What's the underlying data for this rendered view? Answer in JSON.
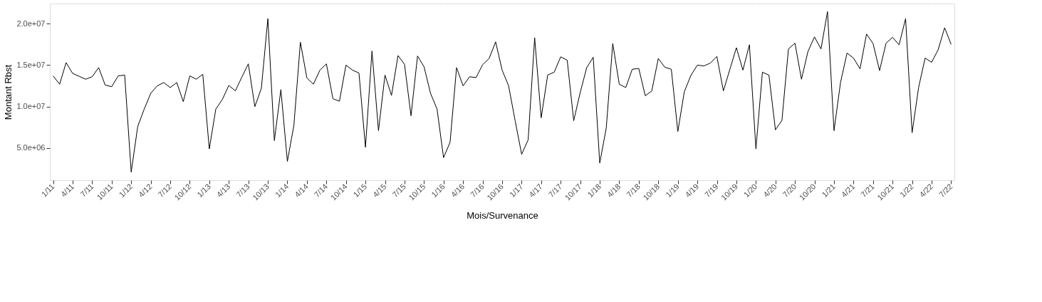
{
  "chart_data": {
    "type": "line",
    "xlabel": "Mois/Survenance",
    "ylabel": "Montant Rbst",
    "categories": [
      "1/11",
      null,
      null,
      "4/11",
      null,
      null,
      "7/11",
      null,
      null,
      "10/11",
      null,
      null,
      "1/12",
      null,
      null,
      "4/12",
      null,
      null,
      "7/12",
      null,
      null,
      "10/12",
      null,
      null,
      "1/13",
      null,
      null,
      "4/13",
      null,
      null,
      "7/13",
      null,
      null,
      "10/13",
      null,
      null,
      "1/14",
      null,
      null,
      "4/14",
      null,
      null,
      "7/14",
      null,
      null,
      "10/14",
      null,
      null,
      "1/15",
      null,
      null,
      "4/15",
      null,
      null,
      "7/15",
      null,
      null,
      "10/15",
      null,
      null,
      "1/16",
      null,
      null,
      "4/16",
      null,
      null,
      "7/16",
      null,
      null,
      "10/16",
      null,
      null,
      "1/17",
      null,
      null,
      "4/17",
      null,
      null,
      "7/17",
      null,
      null,
      "10/17",
      null,
      null,
      "1/18",
      null,
      null,
      "4/18",
      null,
      null,
      "7/18",
      null,
      null,
      "10/18",
      null,
      null,
      "1/19",
      null,
      null,
      "4/19",
      null,
      null,
      "7/19",
      null,
      null,
      "10/19",
      null,
      null,
      "1/20",
      null,
      null,
      "4/20",
      null,
      null,
      "7/20",
      null,
      null,
      "10/20",
      null,
      null,
      "1/21",
      null,
      null,
      "4/21",
      null,
      null,
      "7/21",
      null,
      null,
      "10/21",
      null,
      null,
      "1/22",
      null,
      null,
      "4/22",
      null,
      null,
      "7/22"
    ],
    "series": [
      {
        "color": "#000000",
        "values": [
          13700000.0,
          12700000.0,
          15300000.0,
          14000000.0,
          13650000.0,
          13300000.0,
          13600000.0,
          14700000.0,
          12600000.0,
          12400000.0,
          13700000.0,
          13800000.0,
          2100000.0,
          7600000.0,
          9700000.0,
          11600000.0,
          12500000.0,
          12900000.0,
          12300000.0,
          12900000.0,
          10600000.0,
          13700000.0,
          13300000.0,
          13900000.0,
          4900000.0,
          9700000.0,
          10850000.0,
          12550000.0,
          11900000.0,
          13550000.0,
          15150000.0,
          10000000.0,
          12200000.0,
          20600000.0,
          5900000.0,
          12050000.0,
          3400000.0,
          7750000.0,
          17750000.0,
          13450000.0,
          12700000.0,
          14400000.0,
          15150000.0,
          10950000.0,
          10650000.0,
          15000000.0,
          14400000.0,
          14050000.0,
          5100000.0,
          16700000.0,
          7100000.0,
          13800000.0,
          11350000.0,
          16150000.0,
          15100000.0,
          8900000.0,
          16100000.0,
          14800000.0,
          11600000.0,
          9700000.0,
          3850000.0,
          5700000.0,
          14700000.0,
          12500000.0,
          13600000.0,
          13500000.0,
          15050000.0,
          15800000.0,
          17800000.0,
          14400000.0,
          12500000.0,
          8300000.0,
          4250000.0,
          6000000.0,
          18300000.0,
          8650000.0,
          13800000.0,
          14150000.0,
          16000000.0,
          15600000.0,
          8300000.0,
          11700000.0,
          14700000.0,
          15950000.0,
          3200000.0,
          7400000.0,
          17600000.0,
          12700000.0,
          12300000.0,
          14500000.0,
          14600000.0,
          11300000.0,
          11900000.0,
          15800000.0,
          14750000.0,
          14500000.0,
          7000000.0,
          11800000.0,
          13750000.0,
          15000000.0,
          14900000.0,
          15250000.0,
          16050000.0,
          11900000.0,
          14500000.0,
          17100000.0,
          14400000.0,
          17450000.0,
          4900000.0,
          14150000.0,
          13800000.0,
          7200000.0,
          8350000.0,
          16950000.0,
          17650000.0,
          13300000.0,
          16650000.0,
          18400000.0,
          16950000.0,
          21450000.0,
          7100000.0,
          12900000.0,
          16450000.0,
          15850000.0,
          14550000.0,
          18750000.0,
          17600000.0,
          14350000.0,
          17650000.0,
          18350000.0,
          17450000.0,
          20600000.0,
          6850000.0,
          12300000.0,
          15850000.0,
          15350000.0,
          16850000.0,
          19500000.0,
          17500000.0
        ]
      }
    ],
    "ylim": [
      1130000.0,
      22420000.0
    ],
    "yticks": [
      {
        "value": 5000000.0,
        "label": "5.0e+06"
      },
      {
        "value": 10000000.0,
        "label": "1.0e+07"
      },
      {
        "value": 15000000.0,
        "label": "1.5e+07"
      },
      {
        "value": 20000000.0,
        "label": "2.0e+07"
      }
    ],
    "grid": true
  }
}
